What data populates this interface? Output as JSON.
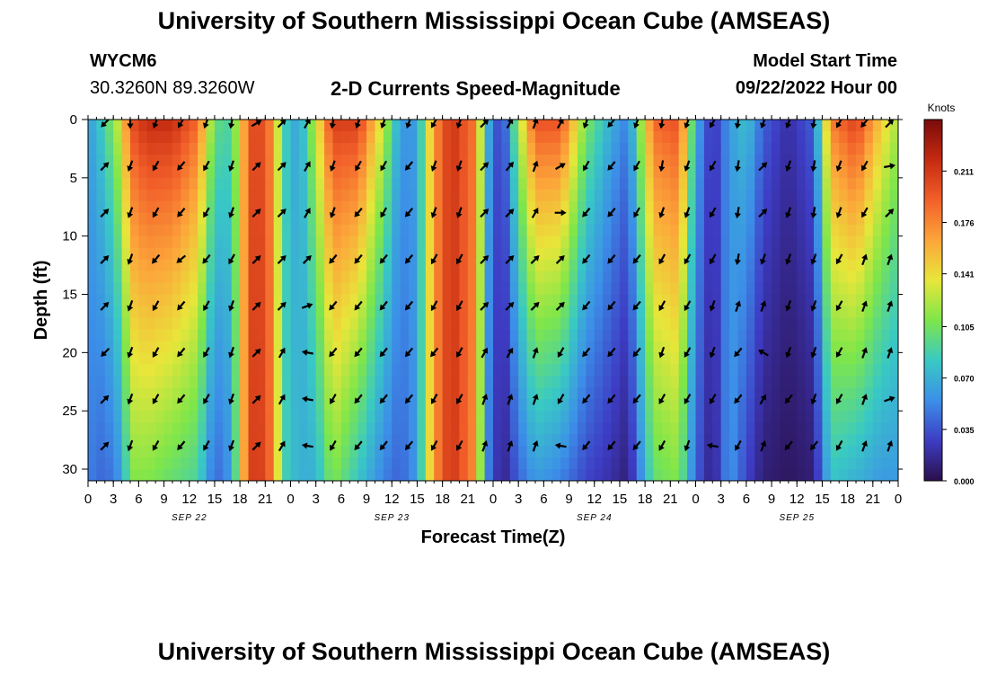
{
  "header": {
    "title": "University of Southern Mississippi Ocean Cube (AMSEAS)",
    "station": "WYCM6",
    "location": "30.3260N  89.3260W",
    "plot_title": "2-D Currents Speed-Magnitude",
    "model_start_label": "Model Start Time",
    "model_start_value": "09/22/2022 Hour 00"
  },
  "footer": {
    "title": "University of Southern Mississippi Ocean Cube (AMSEAS)"
  },
  "chart_data": {
    "type": "heatmap",
    "title": "2-D Currents Speed-Magnitude",
    "xlabel": "Forecast Time(Z)",
    "ylabel": "Depth (ft)",
    "x_range_hours": [
      0,
      96
    ],
    "y_range_ft": [
      0,
      31
    ],
    "x_tick_labels": [
      "0",
      "3",
      "6",
      "9",
      "12",
      "15",
      "18",
      "21",
      "0",
      "3",
      "6",
      "9",
      "12",
      "15",
      "18",
      "21",
      "0",
      "3",
      "6",
      "9",
      "12",
      "15",
      "18",
      "21",
      "0",
      "3",
      "6",
      "9",
      "12",
      "15",
      "18",
      "21",
      "0"
    ],
    "y_tick_labels": [
      "0",
      "5",
      "10",
      "15",
      "20",
      "25",
      "30"
    ],
    "y_ticks": [
      0,
      5,
      10,
      15,
      20,
      25,
      30
    ],
    "date_labels": [
      {
        "text": "SEP 22",
        "hour": 12
      },
      {
        "text": "SEP 23",
        "hour": 36
      },
      {
        "text": "SEP 24",
        "hour": 60
      },
      {
        "text": "SEP 25",
        "hour": 84
      }
    ],
    "colorbar": {
      "unit_label": "Knots",
      "range": [
        0.0,
        0.2461
      ],
      "tick_labels": [
        "0.000",
        "0.035",
        "0.070",
        "0.105",
        "0.141",
        "0.176",
        "0.211"
      ],
      "tick_values": [
        0.0,
        0.035,
        0.07,
        0.105,
        0.141,
        0.176,
        0.211
      ],
      "colors": [
        "#2b0f4a",
        "#3d3cc4",
        "#3c8fe8",
        "#39c9c4",
        "#7ee64a",
        "#e8e63a",
        "#fca53a",
        "#f25f2a",
        "#c42a10",
        "#7a0b0b"
      ]
    },
    "speed_profiles": [
      {
        "hour": 0,
        "surface": 0.06,
        "bottom": 0.05
      },
      {
        "hour": 2,
        "surface": 0.09,
        "bottom": 0.04
      },
      {
        "hour": 4,
        "surface": 0.14,
        "bottom": 0.06
      },
      {
        "hour": 5,
        "surface": 0.2,
        "bottom": 0.11
      },
      {
        "hour": 7,
        "surface": 0.22,
        "bottom": 0.11
      },
      {
        "hour": 10,
        "surface": 0.22,
        "bottom": 0.1
      },
      {
        "hour": 13,
        "surface": 0.19,
        "bottom": 0.09
      },
      {
        "hour": 15,
        "surface": 0.1,
        "bottom": 0.04
      },
      {
        "hour": 17,
        "surface": 0.09,
        "bottom": 0.06
      },
      {
        "hour": 19,
        "surface": 0.19,
        "bottom": 0.2
      },
      {
        "hour": 20,
        "surface": 0.21,
        "bottom": 0.215
      },
      {
        "hour": 22,
        "surface": 0.17,
        "bottom": 0.18
      },
      {
        "hour": 23,
        "surface": 0.09,
        "bottom": 0.09
      },
      {
        "hour": 25,
        "surface": 0.06,
        "bottom": 0.07
      },
      {
        "hour": 27,
        "surface": 0.13,
        "bottom": 0.07
      },
      {
        "hour": 29,
        "surface": 0.21,
        "bottom": 0.11
      },
      {
        "hour": 32,
        "surface": 0.21,
        "bottom": 0.08
      },
      {
        "hour": 35,
        "surface": 0.13,
        "bottom": 0.05
      },
      {
        "hour": 37,
        "surface": 0.06,
        "bottom": 0.04
      },
      {
        "hour": 39,
        "surface": 0.06,
        "bottom": 0.06
      },
      {
        "hour": 41,
        "surface": 0.17,
        "bottom": 0.17
      },
      {
        "hour": 43,
        "surface": 0.215,
        "bottom": 0.215
      },
      {
        "hour": 46,
        "surface": 0.18,
        "bottom": 0.17
      },
      {
        "hour": 47,
        "surface": 0.08,
        "bottom": 0.06
      },
      {
        "hour": 49,
        "surface": 0.02,
        "bottom": 0.01
      },
      {
        "hour": 51,
        "surface": 0.12,
        "bottom": 0.04
      },
      {
        "hour": 53,
        "surface": 0.2,
        "bottom": 0.06
      },
      {
        "hour": 56,
        "surface": 0.2,
        "bottom": 0.05
      },
      {
        "hour": 59,
        "surface": 0.11,
        "bottom": 0.03
      },
      {
        "hour": 62,
        "surface": 0.07,
        "bottom": 0.02
      },
      {
        "hour": 64,
        "surface": 0.05,
        "bottom": 0.01
      },
      {
        "hour": 67,
        "surface": 0.19,
        "bottom": 0.1
      },
      {
        "hour": 70,
        "surface": 0.2,
        "bottom": 0.11
      },
      {
        "hour": 72,
        "surface": 0.07,
        "bottom": 0.04
      },
      {
        "hour": 74,
        "surface": 0.02,
        "bottom": 0.01
      },
      {
        "hour": 76,
        "surface": 0.06,
        "bottom": 0.06
      },
      {
        "hour": 78,
        "surface": 0.08,
        "bottom": 0.03
      },
      {
        "hour": 80,
        "surface": 0.04,
        "bottom": 0.01
      },
      {
        "hour": 83,
        "surface": 0.02,
        "bottom": 0.005
      },
      {
        "hour": 86,
        "surface": 0.04,
        "bottom": 0.01
      },
      {
        "hour": 88,
        "surface": 0.18,
        "bottom": 0.08
      },
      {
        "hour": 91,
        "surface": 0.21,
        "bottom": 0.07
      },
      {
        "hour": 94,
        "surface": 0.15,
        "bottom": 0.06
      },
      {
        "hour": 96,
        "surface": 0.12,
        "bottom": 0.06
      }
    ],
    "vectors": {
      "hours": [
        2,
        5,
        8,
        11,
        14,
        17,
        20,
        23,
        26,
        29,
        32,
        35,
        38,
        41,
        44,
        47,
        50,
        53,
        56,
        59,
        62,
        65,
        68,
        71,
        74,
        77,
        80,
        83,
        86,
        89,
        92,
        95
      ],
      "depths_ft": [
        0,
        4,
        8,
        12,
        16,
        20,
        24,
        28
      ],
      "direction_deg": [
        [
          225,
          180,
          200,
          210,
          200,
          190,
          60,
          45,
          30,
          190,
          200,
          200,
          200,
          210,
          200,
          45,
          30,
          20,
          30,
          200,
          220,
          200,
          190,
          200,
          210,
          190,
          200,
          200,
          190,
          210,
          220,
          45
        ],
        [
          45,
          200,
          210,
          220,
          210,
          200,
          45,
          45,
          30,
          200,
          210,
          210,
          220,
          200,
          200,
          45,
          40,
          20,
          60,
          210,
          220,
          210,
          190,
          200,
          210,
          190,
          45,
          200,
          190,
          200,
          210,
          80
        ],
        [
          45,
          200,
          210,
          220,
          210,
          200,
          45,
          45,
          30,
          200,
          220,
          210,
          220,
          200,
          200,
          45,
          45,
          30,
          90,
          220,
          220,
          210,
          200,
          200,
          210,
          190,
          45,
          200,
          190,
          200,
          210,
          45
        ],
        [
          45,
          200,
          220,
          230,
          220,
          210,
          45,
          45,
          45,
          220,
          220,
          220,
          220,
          210,
          210,
          45,
          45,
          45,
          45,
          220,
          220,
          220,
          210,
          210,
          210,
          190,
          200,
          200,
          200,
          210,
          20,
          20
        ],
        [
          45,
          200,
          210,
          220,
          210,
          200,
          45,
          45,
          70,
          220,
          220,
          220,
          220,
          210,
          210,
          45,
          45,
          45,
          45,
          220,
          220,
          220,
          210,
          210,
          200,
          20,
          20,
          200,
          200,
          210,
          20,
          20
        ],
        [
          225,
          200,
          210,
          220,
          210,
          200,
          45,
          30,
          280,
          220,
          220,
          220,
          220,
          220,
          210,
          30,
          30,
          20,
          210,
          220,
          220,
          220,
          200,
          210,
          200,
          220,
          300,
          200,
          200,
          210,
          20,
          20
        ],
        [
          45,
          200,
          210,
          220,
          210,
          200,
          45,
          30,
          280,
          210,
          220,
          220,
          220,
          210,
          210,
          20,
          20,
          20,
          210,
          220,
          220,
          220,
          210,
          210,
          210,
          220,
          30,
          220,
          200,
          210,
          20,
          70
        ],
        [
          45,
          200,
          210,
          220,
          210,
          200,
          45,
          30,
          280,
          210,
          220,
          220,
          220,
          210,
          210,
          20,
          20,
          20,
          280,
          220,
          220,
          220,
          210,
          200,
          280,
          210,
          20,
          220,
          220,
          210,
          20,
          20
        ]
      ]
    }
  }
}
